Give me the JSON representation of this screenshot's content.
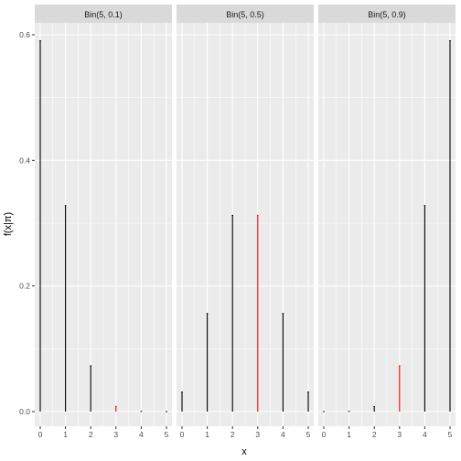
{
  "chart_data": {
    "type": "bar",
    "xlabel": "x",
    "ylabel": "f(x|π)",
    "ylim": [
      0,
      0.6
    ],
    "yticks": [
      0.0,
      0.2,
      0.4,
      0.6
    ],
    "ytick_labels": [
      "0.0",
      "0.2",
      "0.4",
      "0.6"
    ],
    "x": [
      0,
      1,
      2,
      3,
      4,
      5
    ],
    "xtick_labels": [
      "0",
      "1",
      "2",
      "3",
      "4",
      "5"
    ],
    "highlight_x": 3,
    "colors": {
      "stem": "#000000",
      "highlight": "#ff0000",
      "panel_bg": "#ebebeb",
      "grid": "#ffffff",
      "strip_bg": "#d9d9d9"
    },
    "panels": [
      {
        "name": "Bin(5, 0.1)",
        "values": [
          0.59049,
          0.32805,
          0.0729,
          0.0081,
          0.00045,
          1e-05
        ]
      },
      {
        "name": "Bin(5, 0.5)",
        "values": [
          0.03125,
          0.15625,
          0.3125,
          0.3125,
          0.15625,
          0.03125
        ]
      },
      {
        "name": "Bin(5, 0.9)",
        "values": [
          1e-05,
          0.00045,
          0.0081,
          0.0729,
          0.32805,
          0.59049
        ]
      }
    ]
  }
}
